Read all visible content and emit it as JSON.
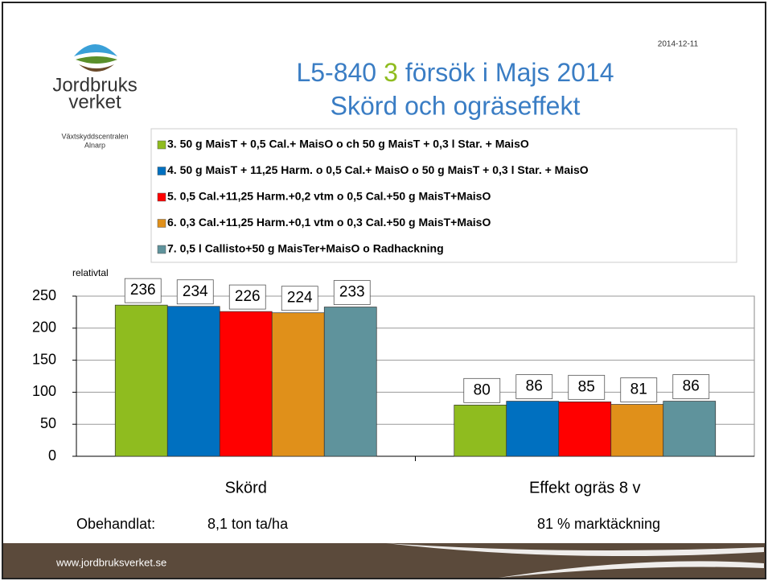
{
  "header": {
    "date": "2014-12-11",
    "logo_line1": "Jordbruks",
    "logo_line2": "verket",
    "org_line1": "Växtskyddscentralen",
    "org_line2": "Alnarp"
  },
  "chart_data": {
    "type": "bar",
    "title_parts": [
      {
        "text": "L5-840",
        "color": "#3a7dc4"
      },
      {
        "text": "3",
        "color": "#8fbc1f"
      },
      {
        "text": "försök i Majs 2014",
        "color": "#3a7dc4"
      }
    ],
    "subtitle": "Skörd och ogräseffekt",
    "y_label": "relativtal",
    "categories": [
      "Skörd",
      "Effekt ogräs 8 v"
    ],
    "series": [
      {
        "name": "3. 50 g MaisT + 0,5 Cal.+ MaisO o ch 50 g MaisT + 0,3 l Star. + MaisO",
        "color": "#8fbc1f",
        "values": [
          236,
          80
        ]
      },
      {
        "name": "4. 50 g MaisT + 11,25 Harm. o 0,5 Cal.+ MaisO o 50 g MaisT + 0,3 l Star. + MaisO",
        "color": "#0070c0",
        "values": [
          234,
          86
        ]
      },
      {
        "name": "5. 0,5 Cal.+11,25 Harm.+0,2 vtm o 0,5 Cal.+50 g MaisT+MaisO",
        "color": "#ff0000",
        "values": [
          226,
          85
        ]
      },
      {
        "name": "6. 0,3 Cal.+11,25 Harm.+0,1 vtm o 0,3 Cal.+50 g MaisT+MaisO",
        "color": "#e0901a",
        "values": [
          224,
          81
        ]
      },
      {
        "name": "7. 0,5 l Callisto+50 g MaisTer+MaisO o Radhackning",
        "color": "#5f939c",
        "values": [
          233,
          86
        ]
      }
    ],
    "ylim": [
      0,
      250
    ],
    "yticks": [
      0,
      50,
      100,
      150,
      200,
      250
    ],
    "grid": true,
    "legend": "top"
  },
  "notes": {
    "label": "Obehandlat:",
    "values": [
      "8,1 ton ta/ha",
      "81 % marktäckning"
    ]
  },
  "footer": {
    "url": "www.jordbruksverket.se"
  }
}
